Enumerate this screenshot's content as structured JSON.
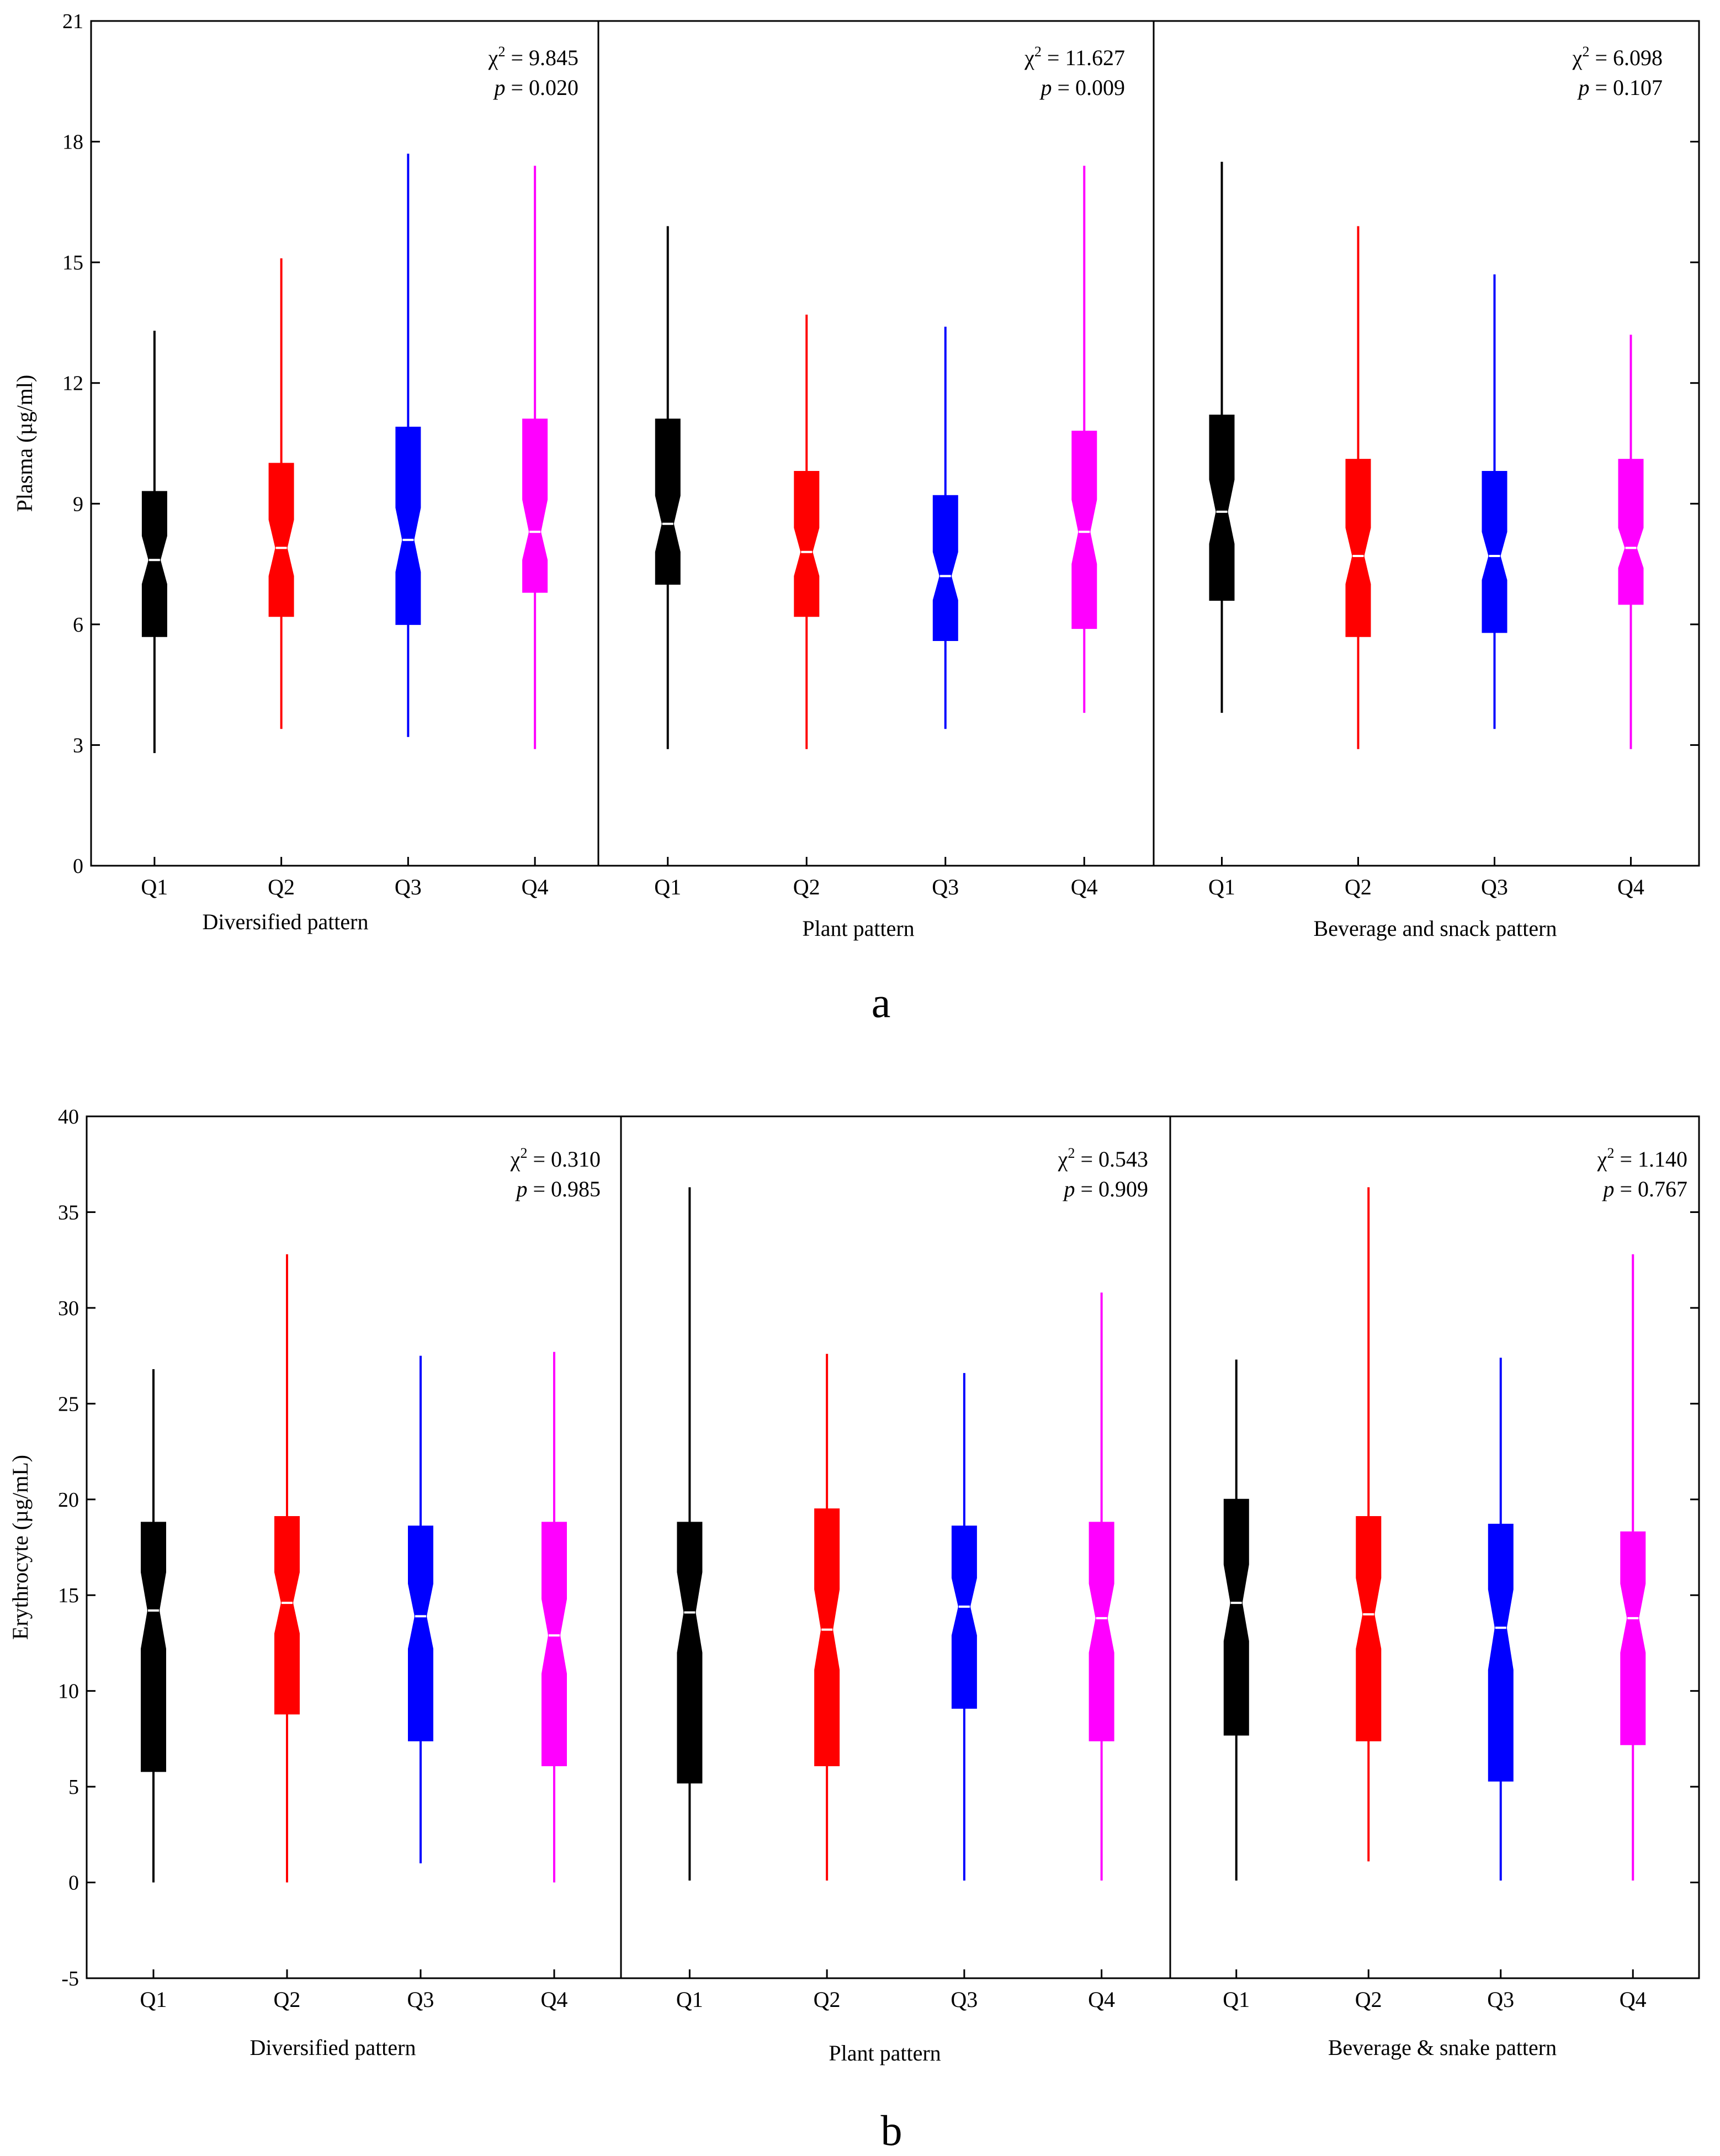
{
  "colors": {
    "Q1": "#000000",
    "Q2": "#ff0000",
    "Q3": "#0000ff",
    "Q4": "#ff00ff"
  },
  "chart_data": [
    {
      "id": "a",
      "type": "box",
      "panel_label": "a",
      "ylabel": "Plasma (µg/ml)",
      "ylim": [
        0,
        21
      ],
      "yticks": [
        0,
        3,
        6,
        9,
        12,
        15,
        18,
        21
      ],
      "categories": [
        "Q1",
        "Q2",
        "Q3",
        "Q4"
      ],
      "groups": [
        {
          "name": "Diversified pattern",
          "stat_chi": "χ",
          "stat_sup": "2",
          "stat_value": " = 9.845",
          "p_symbol": "p",
          "p_value": " = 0.020",
          "boxes": [
            {
              "cat": "Q1",
              "min": 2.8,
              "q1": 5.7,
              "median": 7.6,
              "q3": 9.3,
              "max": 13.3,
              "notch_low": 7.0,
              "notch_high": 8.2
            },
            {
              "cat": "Q2",
              "min": 3.4,
              "q1": 6.2,
              "median": 7.9,
              "q3": 10.0,
              "max": 15.1,
              "notch_low": 7.2,
              "notch_high": 8.6
            },
            {
              "cat": "Q3",
              "min": 3.2,
              "q1": 6.0,
              "median": 8.1,
              "q3": 10.9,
              "max": 17.7,
              "notch_low": 7.3,
              "notch_high": 8.9
            },
            {
              "cat": "Q4",
              "min": 2.9,
              "q1": 6.8,
              "median": 8.3,
              "q3": 11.1,
              "max": 17.4,
              "notch_low": 7.6,
              "notch_high": 9.1
            }
          ]
        },
        {
          "name": "Plant pattern",
          "stat_chi": "χ",
          "stat_sup": "2",
          "stat_value": " = 11.627",
          "p_symbol": "p",
          "p_value": " = 0.009",
          "boxes": [
            {
              "cat": "Q1",
              "min": 2.9,
              "q1": 7.0,
              "median": 8.5,
              "q3": 11.1,
              "max": 15.9,
              "notch_low": 7.8,
              "notch_high": 9.2
            },
            {
              "cat": "Q2",
              "min": 2.9,
              "q1": 6.2,
              "median": 7.8,
              "q3": 9.8,
              "max": 13.7,
              "notch_low": 7.2,
              "notch_high": 8.4
            },
            {
              "cat": "Q3",
              "min": 3.4,
              "q1": 5.6,
              "median": 7.2,
              "q3": 9.2,
              "max": 13.4,
              "notch_low": 6.6,
              "notch_high": 7.8
            },
            {
              "cat": "Q4",
              "min": 3.8,
              "q1": 5.9,
              "median": 8.3,
              "q3": 10.8,
              "max": 17.4,
              "notch_low": 7.5,
              "notch_high": 9.1
            }
          ]
        },
        {
          "name": "Beverage and snack pattern",
          "stat_chi": "χ",
          "stat_sup": "2",
          "stat_value": " = 6.098",
          "p_symbol": "p",
          "p_value": " = 0.107",
          "boxes": [
            {
              "cat": "Q1",
              "min": 3.8,
              "q1": 6.6,
              "median": 8.8,
              "q3": 11.2,
              "max": 17.5,
              "notch_low": 8.0,
              "notch_high": 9.6
            },
            {
              "cat": "Q2",
              "min": 2.9,
              "q1": 5.7,
              "median": 7.7,
              "q3": 10.1,
              "max": 15.9,
              "notch_low": 7.0,
              "notch_high": 8.4
            },
            {
              "cat": "Q3",
              "min": 3.4,
              "q1": 5.8,
              "median": 7.7,
              "q3": 9.8,
              "max": 14.7,
              "notch_low": 7.1,
              "notch_high": 8.3
            },
            {
              "cat": "Q4",
              "min": 2.9,
              "q1": 6.5,
              "median": 7.9,
              "q3": 10.1,
              "max": 13.2,
              "notch_low": 7.4,
              "notch_high": 8.4
            }
          ]
        }
      ]
    },
    {
      "id": "b",
      "type": "box",
      "panel_label": "b",
      "ylabel": "Erythrocyte (µg/mL)",
      "ylim": [
        -5,
        40
      ],
      "yticks": [
        -5,
        0,
        5,
        10,
        15,
        20,
        25,
        30,
        35,
        40
      ],
      "categories": [
        "Q1",
        "Q2",
        "Q3",
        "Q4"
      ],
      "groups": [
        {
          "name": "Diversified pattern",
          "stat_chi": "χ",
          "stat_sup": "2",
          "stat_value": " = 0.310",
          "p_symbol": "p",
          "p_value": " = 0.985",
          "boxes": [
            {
              "cat": "Q1",
              "min": 0.0,
              "q1": 5.8,
              "median": 14.2,
              "q3": 18.8,
              "max": 26.8,
              "notch_low": 12.2,
              "notch_high": 16.2
            },
            {
              "cat": "Q2",
              "min": 0.0,
              "q1": 8.8,
              "median": 14.6,
              "q3": 19.1,
              "max": 32.8,
              "notch_low": 13.0,
              "notch_high": 16.2
            },
            {
              "cat": "Q3",
              "min": 1.0,
              "q1": 7.4,
              "median": 13.9,
              "q3": 18.6,
              "max": 27.5,
              "notch_low": 12.2,
              "notch_high": 15.6
            },
            {
              "cat": "Q4",
              "min": 0.0,
              "q1": 6.1,
              "median": 12.9,
              "q3": 18.8,
              "max": 27.7,
              "notch_low": 10.9,
              "notch_high": 14.8
            }
          ]
        },
        {
          "name": "Plant pattern",
          "stat_chi": "χ",
          "stat_sup": "2",
          "stat_value": " = 0.543",
          "p_symbol": "p",
          "p_value": " = 0.909",
          "boxes": [
            {
              "cat": "Q1",
              "min": 0.1,
              "q1": 5.2,
              "median": 14.1,
              "q3": 18.8,
              "max": 36.3,
              "notch_low": 12.0,
              "notch_high": 16.2
            },
            {
              "cat": "Q2",
              "min": 0.1,
              "q1": 6.1,
              "median": 13.2,
              "q3": 19.5,
              "max": 27.6,
              "notch_low": 11.1,
              "notch_high": 15.3
            },
            {
              "cat": "Q3",
              "min": 0.1,
              "q1": 9.1,
              "median": 14.4,
              "q3": 18.6,
              "max": 26.6,
              "notch_low": 12.9,
              "notch_high": 15.9
            },
            {
              "cat": "Q4",
              "min": 0.1,
              "q1": 7.4,
              "median": 13.8,
              "q3": 18.8,
              "max": 30.8,
              "notch_low": 12.0,
              "notch_high": 15.6
            }
          ]
        },
        {
          "name": "Beverage & snake pattern",
          "stat_chi": "χ",
          "stat_sup": "2",
          "stat_value": " = 1.140",
          "p_symbol": "p",
          "p_value": " = 0.767",
          "boxes": [
            {
              "cat": "Q1",
              "min": 0.1,
              "q1": 7.7,
              "median": 14.6,
              "q3": 20.0,
              "max": 27.3,
              "notch_low": 12.6,
              "notch_high": 16.6
            },
            {
              "cat": "Q2",
              "min": 1.1,
              "q1": 7.4,
              "median": 14.0,
              "q3": 19.1,
              "max": 36.3,
              "notch_low": 12.2,
              "notch_high": 15.9
            },
            {
              "cat": "Q3",
              "min": 0.1,
              "q1": 5.3,
              "median": 13.3,
              "q3": 18.7,
              "max": 27.4,
              "notch_low": 11.1,
              "notch_high": 15.3
            },
            {
              "cat": "Q4",
              "min": 0.1,
              "q1": 7.2,
              "median": 13.8,
              "q3": 18.3,
              "max": 32.8,
              "notch_low": 12.0,
              "notch_high": 15.6
            }
          ]
        }
      ]
    }
  ]
}
